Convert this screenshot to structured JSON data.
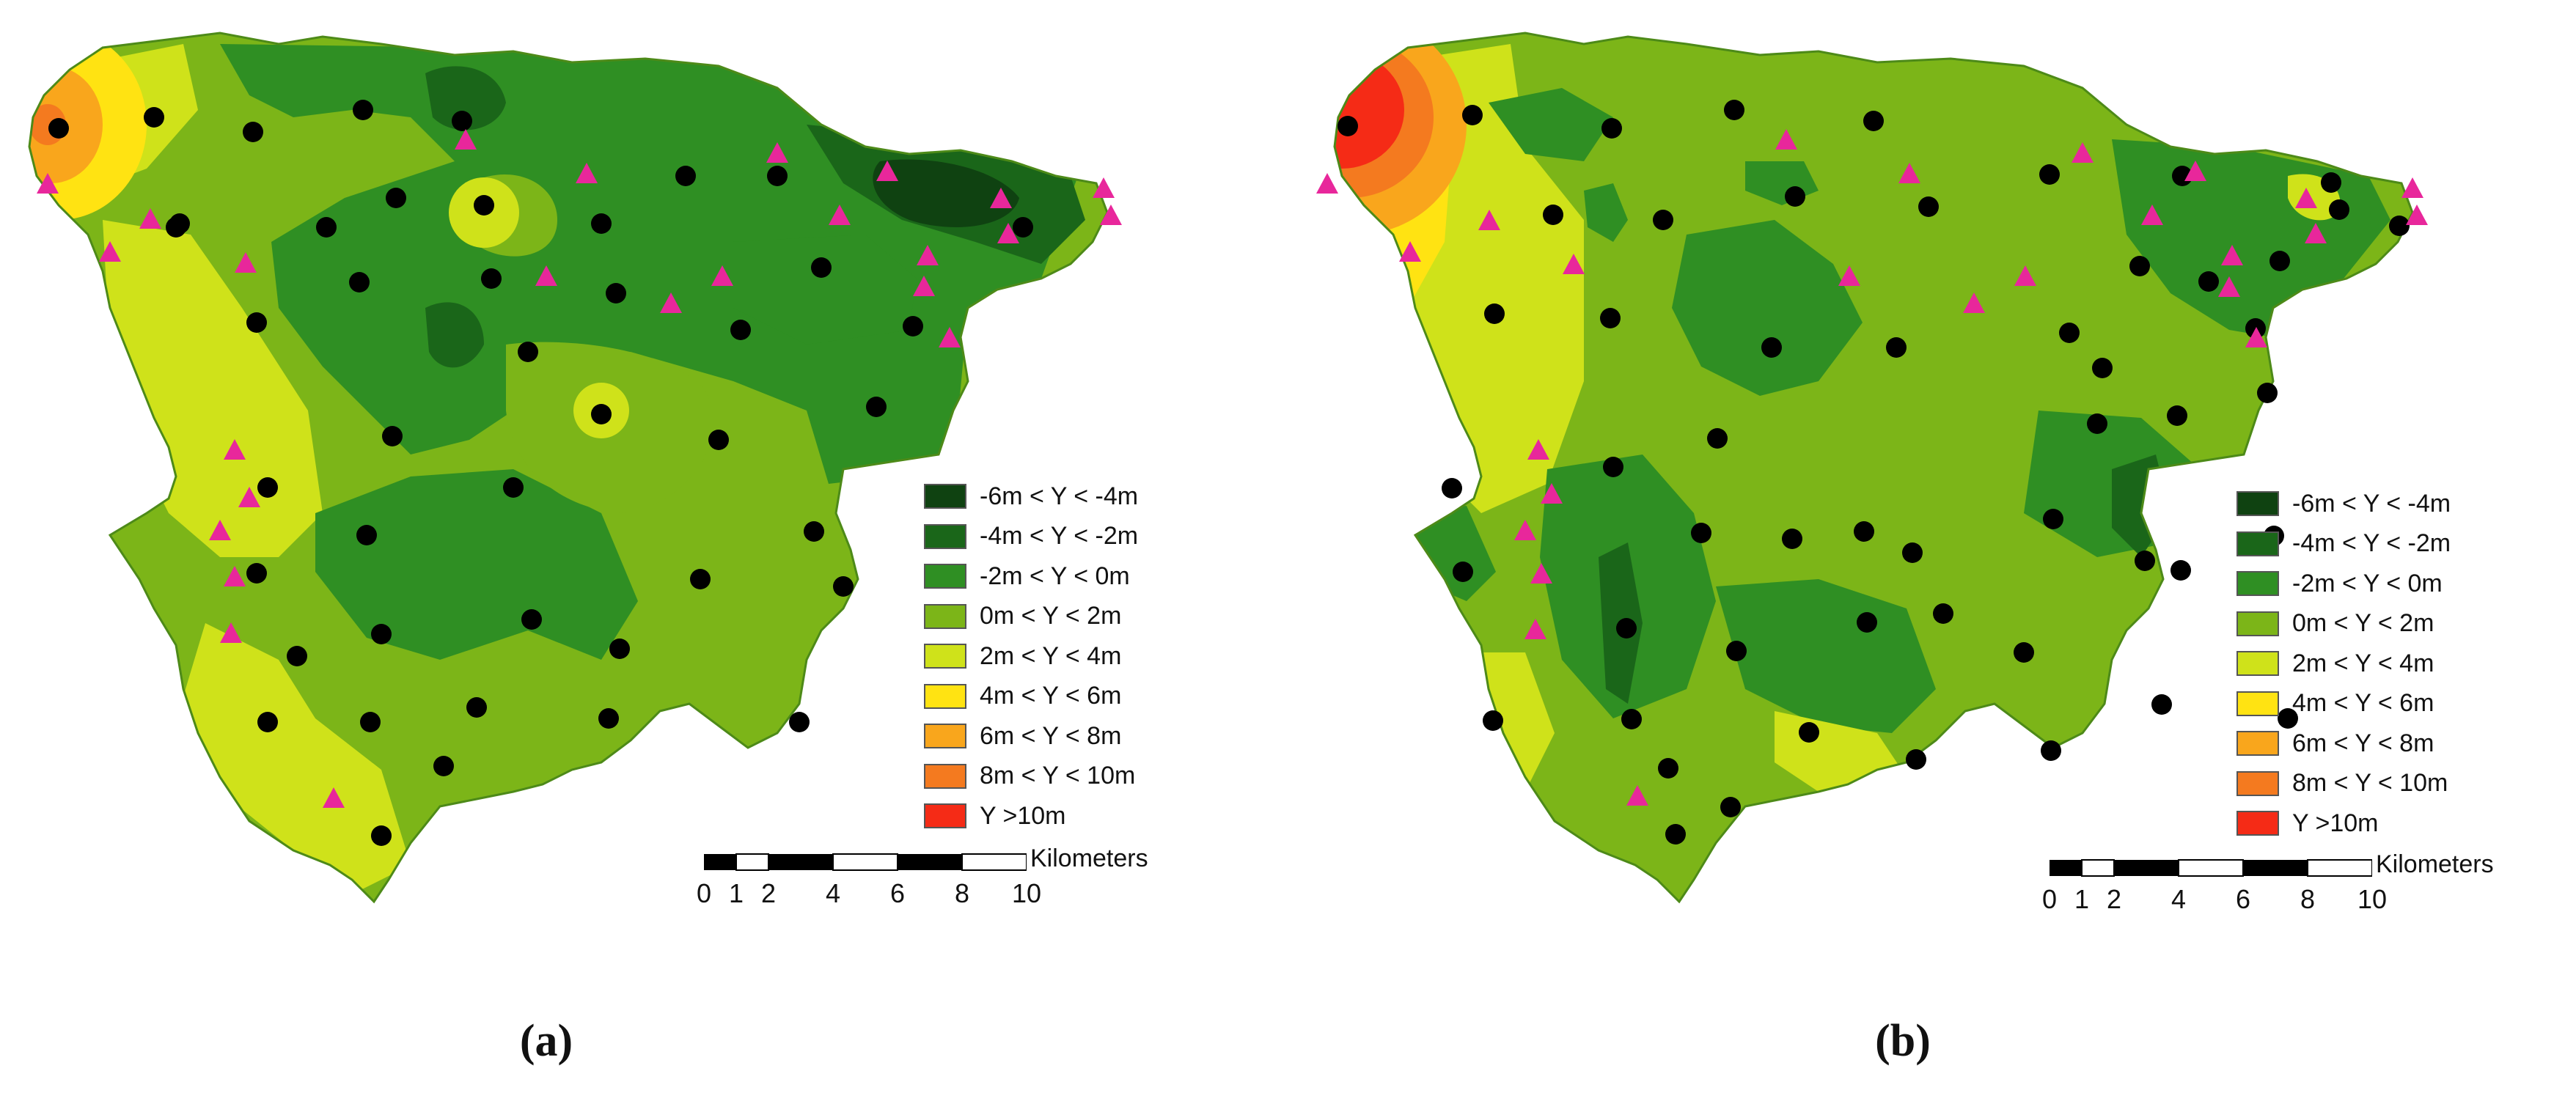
{
  "panels": [
    {
      "label": "(a)",
      "legend": [
        {
          "label": "-6m < Y < -4m",
          "color": "#0f4211"
        },
        {
          "label": "-4m < Y < -2m",
          "color": "#1a6619"
        },
        {
          "label": "-2m < Y < 0m",
          "color": "#2f8f23"
        },
        {
          "label": "0m < Y < 2m",
          "color": "#7cb518"
        },
        {
          "label": "2m < Y < 4m",
          "color": "#cfe21a"
        },
        {
          "label": "4m < Y < 6m",
          "color": "#ffe312"
        },
        {
          "label": "6m < Y < 8m",
          "color": "#f9a61c"
        },
        {
          "label": "8m < Y < 10m",
          "color": "#f47a1f"
        },
        {
          "label": "Y >10m",
          "color": "#f52b16"
        }
      ],
      "scalebar": {
        "unit": "Kilometers",
        "ticks": [
          "0",
          "1",
          "2",
          "4",
          "6",
          "8",
          "10"
        ]
      }
    },
    {
      "label": "(b)",
      "legend": [
        {
          "label": "-6m < Y < -4m",
          "color": "#0f4211"
        },
        {
          "label": "-4m < Y < -2m",
          "color": "#1a6619"
        },
        {
          "label": "-2m < Y < 0m",
          "color": "#2f8f23"
        },
        {
          "label": "0m < Y < 2m",
          "color": "#7cb518"
        },
        {
          "label": "2m < Y < 4m",
          "color": "#cfe21a"
        },
        {
          "label": "4m < Y < 6m",
          "color": "#ffe312"
        },
        {
          "label": "6m < Y < 8m",
          "color": "#f9a61c"
        },
        {
          "label": "8m < Y < 10m",
          "color": "#f47a1f"
        },
        {
          "label": "Y >10m",
          "color": "#f52b16"
        }
      ],
      "scalebar": {
        "unit": "Kilometers",
        "ticks": [
          "0",
          "1",
          "2",
          "4",
          "6",
          "8",
          "10"
        ]
      }
    }
  ],
  "symbols": {
    "well_color": "#000000",
    "triangle_color": "#e8279b"
  }
}
